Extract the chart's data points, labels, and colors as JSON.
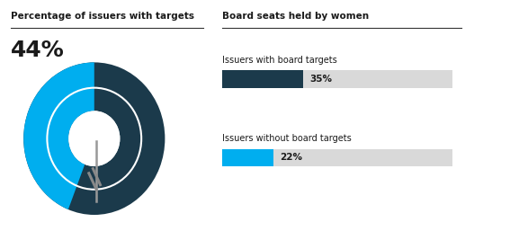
{
  "title_left": "Percentage of issuers with targets",
  "title_right": "Board seats held by women",
  "big_percentage": "44%",
  "donut_pct": 44,
  "donut_color_fill": "#00AEEF",
  "donut_color_bg": "#1B3A4B",
  "bar1_label": "Issuers with board targets",
  "bar1_value": 35,
  "bar1_color": "#1B3A4B",
  "bar1_text": "35%",
  "bar2_label": "Issuers without board targets",
  "bar2_value": 22,
  "bar2_color": "#00AEEF",
  "bar2_text": "22%",
  "bar_bg_color": "#D9D9D9",
  "bar_max": 100,
  "background_color": "#ffffff",
  "divider_color": "#333333",
  "text_color": "#1a1a1a"
}
